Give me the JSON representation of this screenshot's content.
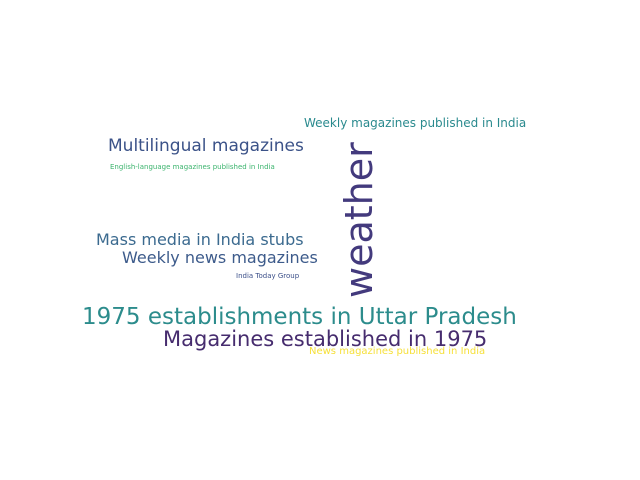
{
  "words": [
    {
      "key": "weekly_pub",
      "text": "Weekly magazines published in India",
      "color": "#2a8a8e"
    },
    {
      "key": "multi",
      "text": "Multilingual magazines",
      "color": "#3b5288"
    },
    {
      "key": "english",
      "text": "English-language magazines published in India",
      "color": "#3cb46e"
    },
    {
      "key": "weather",
      "text": "weather",
      "color": "#433a7d"
    },
    {
      "key": "massmedia",
      "text": "Mass media in India stubs",
      "color": "#3b6a8f"
    },
    {
      "key": "weeklynews",
      "text": "Weekly news magazines",
      "color": "#3d5b8b"
    },
    {
      "key": "indiatoday",
      "text": "India Today Group",
      "color": "#3b4f89"
    },
    {
      "key": "estab_up",
      "text": "1975 establishments in Uttar Pradesh",
      "color": "#2c8c8c"
    },
    {
      "key": "mag_1975",
      "text": "Magazines established in 1975",
      "color": "#462c6e"
    },
    {
      "key": "newsmag",
      "text": "News magazines published in India",
      "color": "#f6e03a"
    }
  ]
}
